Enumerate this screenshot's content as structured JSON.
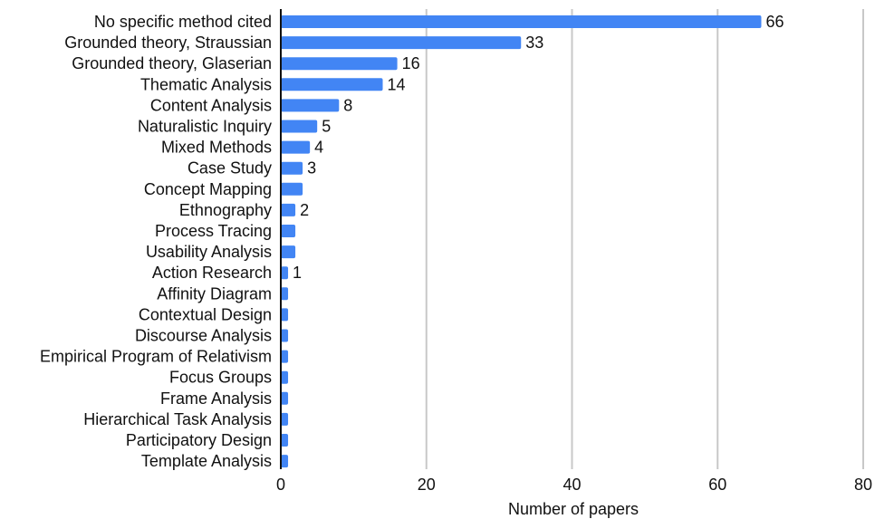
{
  "chart_data": {
    "type": "bar",
    "orientation": "horizontal",
    "categories": [
      "No specific method cited",
      "Grounded theory, Straussian",
      "Grounded theory, Glaserian",
      "Thematic Analysis",
      "Content Analysis",
      "Naturalistic Inquiry",
      "Mixed Methods",
      "Case Study",
      "Concept Mapping",
      "Ethnography",
      "Process Tracing",
      "Usability Analysis",
      "Action Research",
      "Affinity Diagram",
      "Contextual Design",
      "Discourse Analysis",
      "Empirical Program of Relativism",
      "Focus Groups",
      "Frame Analysis",
      "Hierarchical Task Analysis",
      "Participatory Design",
      "Template Analysis"
    ],
    "values": [
      66,
      33,
      16,
      14,
      8,
      5,
      4,
      3,
      3,
      2,
      2,
      2,
      1,
      1,
      1,
      1,
      1,
      1,
      1,
      1,
      1,
      1
    ],
    "value_labels": [
      "66",
      "33",
      "16",
      "14",
      "8",
      "5",
      "4",
      "3",
      "",
      "2",
      "",
      "",
      "1",
      "",
      "",
      "",
      "",
      "",
      "",
      "",
      "",
      ""
    ],
    "title": "",
    "xlabel": "Number of papers",
    "ylabel": "",
    "xlim": [
      0,
      80
    ],
    "xticks": [
      "0",
      "20",
      "40",
      "60",
      "80"
    ],
    "grid": "vertical",
    "legend": "none",
    "bar_color": "#4285f4"
  }
}
